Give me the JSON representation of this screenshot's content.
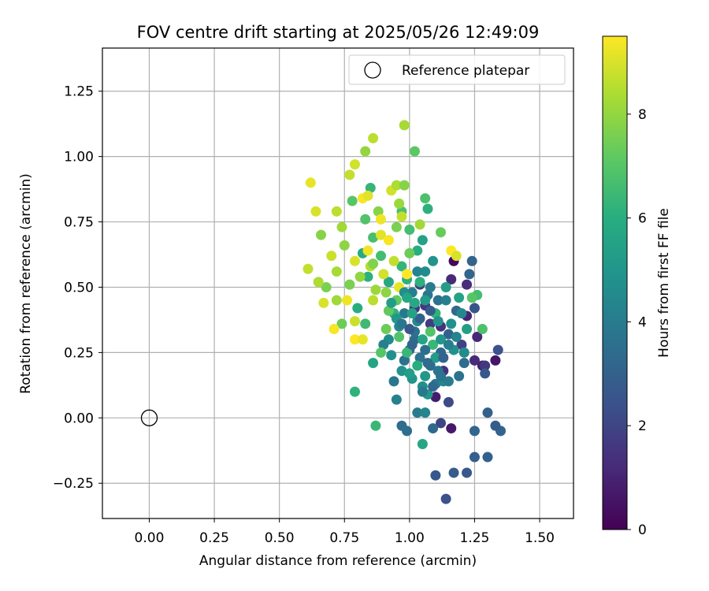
{
  "chart_data": {
    "type": "scatter",
    "title": "FOV centre drift starting at 2025/05/26 12:49:09",
    "xlabel": "Angular distance from reference (arcmin)",
    "ylabel": "Rotation from reference (arcmin)",
    "xlim": [
      -0.18,
      1.63
    ],
    "ylim": [
      -0.385,
      1.415
    ],
    "xticks": [
      0.0,
      0.25,
      0.5,
      0.75,
      1.0,
      1.25,
      1.5
    ],
    "xtick_labels": [
      "0.00",
      "0.25",
      "0.50",
      "0.75",
      "1.00",
      "1.25",
      "1.50"
    ],
    "yticks": [
      -0.25,
      0.0,
      0.25,
      0.5,
      0.75,
      1.0,
      1.25
    ],
    "ytick_labels": [
      "−0.25",
      "0.00",
      "0.25",
      "0.50",
      "0.75",
      "1.00",
      "1.25"
    ],
    "grid": true,
    "legend": {
      "position": "top-right",
      "entries": [
        "Reference platepar"
      ]
    },
    "reference_point": {
      "x": 0.0,
      "y": 0.0,
      "label": "Reference platepar",
      "marker": "open-circle"
    },
    "colorbar": {
      "label": "Hours from first FF file",
      "range": [
        0,
        9.5
      ],
      "ticks": [
        0,
        2,
        4,
        6,
        8
      ],
      "colormap": "viridis"
    },
    "points_visible_count_note": "",
    "series": [
      {
        "color_by": "hours",
        "points": [
          [
            1.17,
            0.6,
            0.2
          ],
          [
            1.16,
            -0.04,
            0.7
          ],
          [
            1.33,
            0.22,
            0.6
          ],
          [
            1.28,
            0.2,
            0.9
          ],
          [
            1.1,
            0.08,
            0.8
          ],
          [
            1.22,
            0.39,
            1.0
          ],
          [
            1.16,
            0.53,
            1.2
          ],
          [
            1.22,
            0.51,
            1.3
          ],
          [
            1.13,
            0.18,
            1.4
          ],
          [
            1.26,
            0.31,
            1.1
          ],
          [
            1.06,
            0.43,
            1.6
          ],
          [
            1.02,
            0.42,
            1.5
          ],
          [
            1.04,
            0.51,
            1.8
          ],
          [
            1.08,
            0.36,
            1.7
          ],
          [
            1.2,
            0.28,
            1.9
          ],
          [
            1.29,
            0.2,
            1.6
          ],
          [
            1.25,
            0.22,
            1.2
          ],
          [
            1.12,
            0.35,
            1.4
          ],
          [
            1.15,
            0.06,
            2.2
          ],
          [
            1.12,
            -0.02,
            2.0
          ],
          [
            1.14,
            -0.31,
            2.4
          ],
          [
            1.1,
            -0.22,
            2.6
          ],
          [
            1.17,
            -0.21,
            2.8
          ],
          [
            1.22,
            -0.21,
            2.7
          ],
          [
            1.25,
            -0.15,
            2.9
          ],
          [
            1.3,
            -0.15,
            3.0
          ],
          [
            1.35,
            -0.05,
            3.1
          ],
          [
            1.33,
            -0.03,
            2.8
          ],
          [
            1.25,
            -0.05,
            3.2
          ],
          [
            1.3,
            0.02,
            3.0
          ],
          [
            1.34,
            0.26,
            2.4
          ],
          [
            1.29,
            0.17,
            2.6
          ],
          [
            1.24,
            0.6,
            3.1
          ],
          [
            1.23,
            0.55,
            3.2
          ],
          [
            1.25,
            0.42,
            2.5
          ],
          [
            0.97,
            -0.03,
            3.4
          ],
          [
            0.99,
            -0.05,
            3.5
          ],
          [
            1.09,
            -0.04,
            3.3
          ],
          [
            1.03,
            0.02,
            4.0
          ],
          [
            1.06,
            0.02,
            4.3
          ],
          [
            0.95,
            0.07,
            4.2
          ],
          [
            0.94,
            0.14,
            3.8
          ],
          [
            0.98,
            0.22,
            3.6
          ],
          [
            1.0,
            0.26,
            3.3
          ],
          [
            1.02,
            0.3,
            3.4
          ],
          [
            1.04,
            0.23,
            3.7
          ],
          [
            1.08,
            0.2,
            3.5
          ],
          [
            1.1,
            0.13,
            3.9
          ],
          [
            1.12,
            0.25,
            3.2
          ],
          [
            1.15,
            0.32,
            3.0
          ],
          [
            1.18,
            0.41,
            3.3
          ],
          [
            1.11,
            0.45,
            3.6
          ],
          [
            1.07,
            0.47,
            3.8
          ],
          [
            1.01,
            0.48,
            4.1
          ],
          [
            0.98,
            0.4,
            3.9
          ],
          [
            0.96,
            0.35,
            4.4
          ],
          [
            0.92,
            0.3,
            4.6
          ],
          [
            0.9,
            0.28,
            4.2
          ],
          [
            0.93,
            0.24,
            4.8
          ],
          [
            0.97,
            0.18,
            4.9
          ],
          [
            1.01,
            0.15,
            5.0
          ],
          [
            1.05,
            0.12,
            4.7
          ],
          [
            1.07,
            0.09,
            5.1
          ],
          [
            1.03,
            0.37,
            4.5
          ],
          [
            1.06,
            0.56,
            4.6
          ],
          [
            1.09,
            0.6,
            4.9
          ],
          [
            1.14,
            0.5,
            5.3
          ],
          [
            1.19,
            0.46,
            5.5
          ],
          [
            1.22,
            0.34,
            5.4
          ],
          [
            1.17,
            0.26,
            4.8
          ],
          [
            1.13,
            0.14,
            4.4
          ],
          [
            1.1,
            0.23,
            5.2
          ],
          [
            1.05,
            0.3,
            5.6
          ],
          [
            1.02,
            0.44,
            5.8
          ],
          [
            0.99,
            0.53,
            6.1
          ],
          [
            0.97,
            0.58,
            6.3
          ],
          [
            1.03,
            0.64,
            6.0
          ],
          [
            1.05,
            0.68,
            5.5
          ],
          [
            1.0,
            0.72,
            6.6
          ],
          [
            0.97,
            0.79,
            6.8
          ],
          [
            1.07,
            0.8,
            6.1
          ],
          [
            1.06,
            0.84,
            6.8
          ],
          [
            0.86,
            0.21,
            5.6
          ],
          [
            0.87,
            -0.03,
            6.4
          ],
          [
            1.05,
            -0.1,
            5.7
          ],
          [
            0.79,
            0.1,
            6.2
          ],
          [
            0.8,
            0.42,
            6.0
          ],
          [
            0.83,
            0.36,
            6.5
          ],
          [
            0.84,
            0.54,
            6.1
          ],
          [
            0.82,
            0.63,
            5.9
          ],
          [
            0.86,
            0.69,
            6.7
          ],
          [
            0.83,
            0.76,
            6.9
          ],
          [
            0.78,
            0.83,
            7.0
          ],
          [
            0.85,
            0.88,
            6.3
          ],
          [
            0.92,
            0.52,
            5.7
          ],
          [
            0.89,
            0.62,
            6.6
          ],
          [
            0.94,
            0.4,
            6.2
          ],
          [
            0.95,
            0.45,
            7.2
          ],
          [
            0.91,
            0.34,
            7.4
          ],
          [
            0.89,
            0.25,
            7.0
          ],
          [
            1.02,
            1.02,
            7.1
          ],
          [
            1.12,
            0.71,
            7.3
          ],
          [
            1.26,
            0.47,
            6.6
          ],
          [
            1.28,
            0.34,
            6.8
          ],
          [
            1.24,
            0.46,
            7.0
          ],
          [
            1.09,
            0.28,
            6.4
          ],
          [
            1.1,
            0.4,
            6.2
          ],
          [
            1.08,
            0.33,
            6.9
          ],
          [
            1.0,
            0.63,
            7.4
          ],
          [
            0.95,
            0.73,
            7.6
          ],
          [
            0.88,
            0.79,
            7.8
          ],
          [
            0.83,
            1.02,
            8.0
          ],
          [
            0.98,
            1.12,
            8.3
          ],
          [
            0.86,
            1.07,
            8.6
          ],
          [
            0.79,
            0.97,
            8.9
          ],
          [
            0.77,
            0.93,
            8.7
          ],
          [
            0.62,
            0.9,
            9.2
          ],
          [
            0.64,
            0.79,
            9.0
          ],
          [
            0.72,
            0.79,
            8.6
          ],
          [
            0.66,
            0.7,
            7.8
          ],
          [
            0.74,
            0.73,
            8.2
          ],
          [
            0.75,
            0.66,
            7.9
          ],
          [
            0.7,
            0.62,
            8.8
          ],
          [
            0.72,
            0.56,
            8.3
          ],
          [
            0.68,
            0.5,
            7.6
          ],
          [
            0.65,
            0.52,
            8.4
          ],
          [
            0.61,
            0.57,
            8.7
          ],
          [
            0.67,
            0.44,
            9.0
          ],
          [
            0.72,
            0.45,
            8.2
          ],
          [
            0.74,
            0.36,
            7.4
          ],
          [
            0.76,
            0.45,
            9.3
          ],
          [
            0.71,
            0.34,
            9.4
          ],
          [
            0.79,
            0.3,
            9.5
          ],
          [
            0.82,
            0.3,
            9.2
          ],
          [
            0.79,
            0.37,
            8.8
          ],
          [
            0.77,
            0.51,
            7.6
          ],
          [
            0.81,
            0.54,
            8.0
          ],
          [
            0.79,
            0.6,
            9.0
          ],
          [
            0.84,
            0.64,
            9.3
          ],
          [
            0.85,
            0.58,
            8.5
          ],
          [
            0.89,
            0.7,
            9.1
          ],
          [
            0.92,
            0.68,
            9.4
          ],
          [
            0.94,
            0.6,
            8.7
          ],
          [
            0.9,
            0.55,
            8.9
          ],
          [
            0.96,
            0.5,
            9.2
          ],
          [
            0.99,
            0.55,
            9.5
          ],
          [
            0.87,
            0.49,
            8.1
          ],
          [
            0.91,
            0.48,
            7.9
          ],
          [
            0.86,
            0.45,
            8.6
          ],
          [
            0.82,
            0.84,
            9.4
          ],
          [
            0.84,
            0.85,
            9.1
          ],
          [
            0.89,
            0.76,
            9.3
          ],
          [
            0.93,
            0.87,
            8.9
          ],
          [
            0.95,
            0.89,
            8.4
          ],
          [
            0.98,
            0.89,
            7.8
          ],
          [
            1.16,
            0.64,
            9.5
          ],
          [
            1.18,
            0.62,
            9.0
          ],
          [
            1.04,
            0.74,
            8.2
          ],
          [
            0.97,
            0.77,
            8.7
          ],
          [
            0.96,
            0.82,
            8.1
          ],
          [
            0.86,
            0.59,
            7.7
          ],
          [
            0.92,
            0.41,
            7.2
          ],
          [
            0.96,
            0.31,
            6.9
          ],
          [
            0.99,
            0.25,
            6.4
          ],
          [
            1.03,
            0.2,
            6.0
          ],
          [
            1.0,
            0.17,
            5.4
          ],
          [
            1.06,
            0.16,
            5.1
          ],
          [
            1.12,
            0.3,
            5.0
          ],
          [
            1.16,
            0.36,
            4.8
          ],
          [
            1.2,
            0.4,
            4.5
          ],
          [
            1.14,
            0.45,
            4.2
          ],
          [
            1.08,
            0.5,
            4.0
          ],
          [
            1.03,
            0.56,
            4.3
          ],
          [
            0.98,
            0.48,
            4.7
          ],
          [
            0.95,
            0.38,
            5.1
          ],
          [
            0.93,
            0.44,
            5.3
          ],
          [
            0.97,
            0.36,
            3.8
          ],
          [
            1.02,
            0.33,
            3.6
          ],
          [
            1.06,
            0.26,
            3.5
          ],
          [
            1.11,
            0.18,
            3.8
          ],
          [
            1.15,
            0.14,
            4.0
          ],
          [
            1.19,
            0.16,
            3.6
          ],
          [
            1.21,
            0.21,
            3.4
          ],
          [
            1.13,
            0.23,
            3.1
          ],
          [
            1.08,
            0.41,
            2.8
          ],
          [
            1.04,
            0.38,
            3.0
          ],
          [
            1.0,
            0.34,
            2.7
          ],
          [
            1.01,
            0.28,
            3.2
          ],
          [
            1.07,
            0.21,
            3.4
          ],
          [
            1.12,
            0.16,
            3.7
          ],
          [
            1.09,
            0.12,
            3.3
          ],
          [
            1.05,
            0.1,
            3.9
          ],
          [
            1.15,
            0.28,
            4.1
          ],
          [
            1.18,
            0.31,
            4.3
          ],
          [
            1.21,
            0.25,
            4.6
          ],
          [
            1.11,
            0.37,
            4.9
          ],
          [
            1.06,
            0.45,
            5.2
          ],
          [
            1.01,
            0.4,
            5.5
          ],
          [
            0.99,
            0.46,
            5.7
          ],
          [
            1.04,
            0.52,
            6.1
          ]
        ]
      }
    ]
  }
}
